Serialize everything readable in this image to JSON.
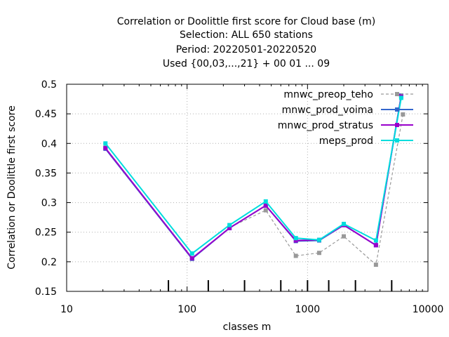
{
  "chart_data": {
    "type": "line",
    "title_lines": [
      "Correlation or Doolittle first score  for Cloud base (m)",
      "Selection: ALL    650 stations",
      "Period: 20220501-20220520",
      "Used {00,03,...,21} + 00 01 ... 09"
    ],
    "xlabel": "classes m",
    "ylabel": "Correlation or Doolittle first score",
    "xscale": "log",
    "xlim": [
      10,
      10000
    ],
    "ylim": [
      0.15,
      0.5
    ],
    "xticks": [
      10,
      100,
      1000,
      10000
    ],
    "xtick_labels": [
      "10",
      "100",
      "1000",
      "10000"
    ],
    "yticks": [
      0.15,
      0.2,
      0.25,
      0.3,
      0.35,
      0.4,
      0.45,
      0.5
    ],
    "ytick_labels": [
      "0.15",
      "0.2",
      "0.25",
      "0.3",
      "0.35",
      "0.4",
      "0.45",
      "0.5"
    ],
    "grid": true,
    "legend_position": "top-right",
    "class_boundaries": [
      70,
      150,
      300,
      600,
      1000,
      1500,
      2500,
      5000
    ],
    "series": [
      {
        "name": "mnwc_preop_teho",
        "color": "#999999",
        "dashed": true,
        "x": [
          21,
          110,
          225,
          450,
          800,
          1250,
          2000,
          3700,
          6200
        ],
        "y": [
          0.393,
          0.205,
          0.258,
          0.287,
          0.21,
          0.215,
          0.243,
          0.195,
          0.449
        ]
      },
      {
        "name": "mnwc_prod_voima",
        "color": "#3366cc",
        "dashed": false,
        "x": [
          21,
          110,
          225,
          450,
          800,
          1250,
          2000,
          3700,
          6000
        ],
        "y": [
          0.391,
          0.205,
          0.257,
          0.295,
          0.235,
          0.236,
          0.262,
          0.228,
          0.481
        ]
      },
      {
        "name": "mnwc_prod_stratus",
        "color": "#9900cc",
        "dashed": false,
        "x": [
          21,
          110,
          225,
          450,
          800,
          1250,
          2000,
          3700,
          6000
        ],
        "y": [
          0.392,
          0.206,
          0.257,
          0.295,
          0.236,
          0.237,
          0.262,
          0.228,
          0.48
        ]
      },
      {
        "name": "meps_prod",
        "color": "#00dddd",
        "dashed": false,
        "x": [
          21,
          110,
          225,
          450,
          800,
          1250,
          2000,
          3700,
          6000
        ],
        "y": [
          0.4,
          0.214,
          0.262,
          0.302,
          0.24,
          0.237,
          0.264,
          0.236,
          0.477
        ]
      }
    ]
  }
}
